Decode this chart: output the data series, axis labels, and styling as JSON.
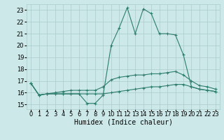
{
  "x": [
    0,
    1,
    2,
    3,
    4,
    5,
    6,
    7,
    8,
    9,
    10,
    11,
    12,
    13,
    14,
    15,
    16,
    17,
    18,
    19,
    20,
    21,
    22,
    23
  ],
  "line1": [
    16.8,
    15.8,
    15.9,
    15.9,
    15.9,
    15.9,
    15.9,
    15.1,
    15.1,
    15.8,
    20.0,
    21.5,
    23.2,
    21.0,
    23.1,
    22.7,
    21.0,
    21.0,
    20.9,
    19.2,
    16.5,
    16.3,
    16.2,
    16.1
  ],
  "line2": [
    16.8,
    15.8,
    15.9,
    15.9,
    15.9,
    15.9,
    15.9,
    15.9,
    15.9,
    15.9,
    16.0,
    16.1,
    16.2,
    16.3,
    16.4,
    16.5,
    16.5,
    16.6,
    16.7,
    16.7,
    16.5,
    16.3,
    16.2,
    16.1
  ],
  "line3": [
    16.8,
    15.8,
    15.9,
    16.0,
    16.1,
    16.2,
    16.2,
    16.2,
    16.2,
    16.5,
    17.1,
    17.3,
    17.4,
    17.5,
    17.5,
    17.6,
    17.6,
    17.7,
    17.8,
    17.5,
    17.0,
    16.6,
    16.5,
    16.3
  ],
  "line_color": "#2d7d6d",
  "bg_color": "#cce8e8",
  "grid_color": "#aacccc",
  "xlabel": "Humidex (Indice chaleur)",
  "ylim": [
    14.6,
    23.5
  ],
  "xlim": [
    -0.5,
    23.5
  ],
  "yticks": [
    15,
    16,
    17,
    18,
    19,
    20,
    21,
    22,
    23
  ],
  "xticks": [
    0,
    1,
    2,
    3,
    4,
    5,
    6,
    7,
    8,
    9,
    10,
    11,
    12,
    13,
    14,
    15,
    16,
    17,
    18,
    19,
    20,
    21,
    22,
    23
  ],
  "xlabel_fontsize": 7,
  "tick_fontsize": 6
}
